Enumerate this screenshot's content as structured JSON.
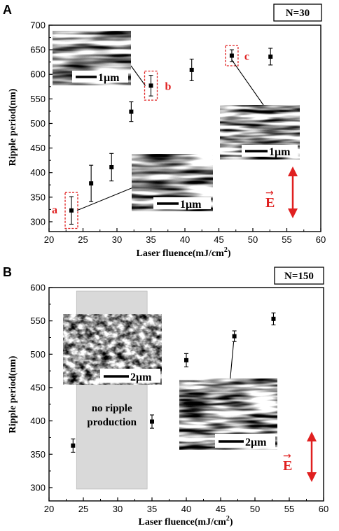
{
  "chart_data": [
    {
      "panel": "A",
      "type": "scatter",
      "badge": "N=30",
      "xlabel": "Laser fluence(mJ/cm",
      "xlabel_sup": "2",
      "xlabel_end": ")",
      "ylabel": "Ripple period(nm)",
      "xlim": [
        20,
        60
      ],
      "ylim": [
        280,
        700
      ],
      "xticks": [
        20,
        25,
        30,
        35,
        40,
        45,
        50,
        55,
        60
      ],
      "yticks": [
        300,
        350,
        400,
        450,
        500,
        550,
        600,
        650,
        700
      ],
      "points": [
        {
          "x": 23.3,
          "y": 323,
          "err": 28
        },
        {
          "x": 26.2,
          "y": 378,
          "err": 37
        },
        {
          "x": 29.2,
          "y": 411,
          "err": 28
        },
        {
          "x": 32.1,
          "y": 524,
          "err": 20
        },
        {
          "x": 35.0,
          "y": 577,
          "err": 21
        },
        {
          "x": 41.0,
          "y": 609,
          "err": 22
        },
        {
          "x": 46.9,
          "y": 638,
          "err": 12
        },
        {
          "x": 52.6,
          "y": 636,
          "err": 17
        }
      ],
      "annotations": [
        {
          "label": "a",
          "point_index": 0
        },
        {
          "label": "b",
          "point_index": 4
        },
        {
          "label": "c",
          "point_index": 6
        }
      ],
      "insets": [
        {
          "scale": "1μm"
        },
        {
          "scale": "1μm"
        },
        {
          "scale": "1μm"
        }
      ],
      "field": {
        "label": "E",
        "arrow": "→"
      },
      "grid": false
    },
    {
      "panel": "B",
      "type": "scatter",
      "badge": "N=150",
      "xlabel": "Laser fluence(mJ/cm",
      "xlabel_sup": "2",
      "xlabel_end": ")",
      "ylabel": "Ripple period(nm)",
      "xlim": [
        20,
        60
      ],
      "ylim": [
        280,
        600
      ],
      "xticks": [
        20,
        25,
        30,
        35,
        40,
        45,
        50,
        55,
        60
      ],
      "yticks": [
        300,
        350,
        400,
        450,
        500,
        550,
        600
      ],
      "points": [
        {
          "x": 23.5,
          "y": 363,
          "err": 10
        },
        {
          "x": 35.0,
          "y": 399,
          "err": 10
        },
        {
          "x": 40.0,
          "y": 491,
          "err": 10
        },
        {
          "x": 47.0,
          "y": 527,
          "err": 8
        },
        {
          "x": 52.7,
          "y": 553,
          "err": 9
        }
      ],
      "shaded_region": {
        "x_start": 24,
        "x_end": 34.3,
        "line1": "no ripple",
        "line2": "production"
      },
      "insets": [
        {
          "scale": "2μm"
        },
        {
          "scale": "2μm"
        }
      ],
      "field": {
        "label": "E",
        "arrow": "→"
      },
      "grid": false
    }
  ],
  "colors": {
    "marker": "#000000",
    "annotation": "#e02020",
    "shade": "#d9d9d9"
  }
}
